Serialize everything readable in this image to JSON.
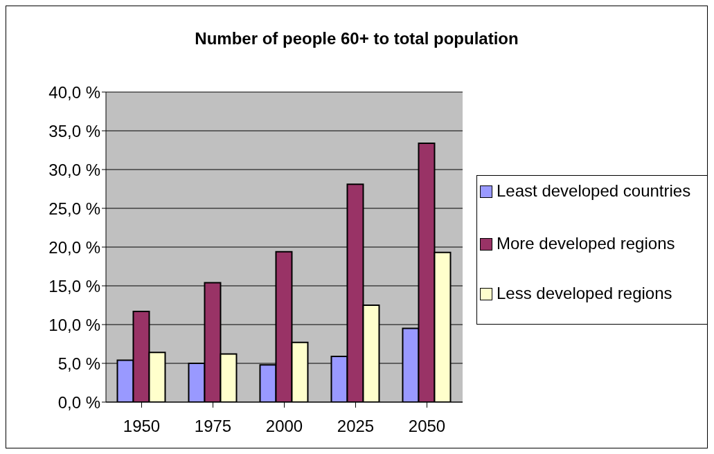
{
  "chart_data": {
    "type": "bar",
    "title": "Number of people 60+ to total population",
    "categories": [
      "1950",
      "1975",
      "2000",
      "2025",
      "2050"
    ],
    "series": [
      {
        "name": "Least developed countries",
        "color": "#9999ff",
        "values": [
          5.4,
          5.0,
          4.8,
          5.9,
          9.5
        ]
      },
      {
        "name": "More developed regions",
        "color": "#993366",
        "values": [
          11.7,
          15.4,
          19.4,
          28.1,
          33.4
        ]
      },
      {
        "name": "Less developed regions",
        "color": "#ffffcc",
        "values": [
          6.4,
          6.2,
          7.7,
          12.5,
          19.3
        ]
      }
    ],
    "ylim": [
      0,
      40
    ],
    "yticks": [
      {
        "value": 0,
        "label": "0,0 %"
      },
      {
        "value": 5,
        "label": "5,0 %"
      },
      {
        "value": 10,
        "label": "10,0 %"
      },
      {
        "value": 15,
        "label": "15,0 %"
      },
      {
        "value": 20,
        "label": "20,0 %"
      },
      {
        "value": 25,
        "label": "25,0 %"
      },
      {
        "value": 30,
        "label": "30,0 %"
      },
      {
        "value": 35,
        "label": "35,0 %"
      },
      {
        "value": 40,
        "label": "40,0 %"
      }
    ],
    "grid": "y",
    "legend": "right"
  }
}
